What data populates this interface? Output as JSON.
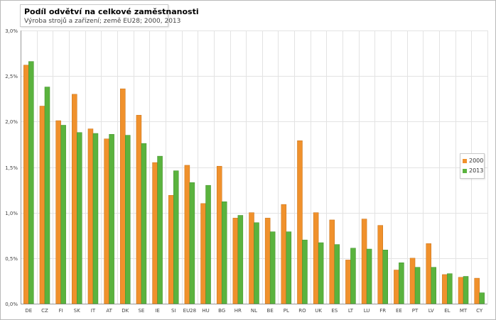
{
  "chart_data": {
    "type": "bar",
    "title": "Podíl odvětví na celkové zaměstnanosti",
    "subtitle": "Výroba strojů a zařízení; země EU28; 2000, 2013",
    "xlabel": "",
    "ylabel": "",
    "ylim": [
      0,
      3.0
    ],
    "yticks": [
      "0,0%",
      "0,5%",
      "1,0%",
      "1,5%",
      "2,0%",
      "2,5%",
      "3,0%"
    ],
    "grid": true,
    "legend_position": "right",
    "categories": [
      "DE",
      "CZ",
      "FI",
      "SK",
      "IT",
      "AT",
      "DK",
      "SE",
      "IE",
      "SI",
      "EU28",
      "HU",
      "BG",
      "HR",
      "NL",
      "BE",
      "PL",
      "RO",
      "UK",
      "ES",
      "LT",
      "LU",
      "FR",
      "EE",
      "PT",
      "LV",
      "EL",
      "MT",
      "CY"
    ],
    "series": [
      {
        "name": "2000",
        "color": "#f0912c",
        "values": [
          2.62,
          2.17,
          2.01,
          2.3,
          1.92,
          1.81,
          2.36,
          2.07,
          1.55,
          1.19,
          1.52,
          1.1,
          1.51,
          0.94,
          1.0,
          0.94,
          1.09,
          1.79,
          1.0,
          0.92,
          0.48,
          0.93,
          0.86,
          0.37,
          0.5,
          0.66,
          0.32,
          0.29,
          0.28
        ]
      },
      {
        "name": "2013",
        "color": "#5ab33e",
        "values": [
          2.66,
          2.38,
          1.96,
          1.88,
          1.87,
          1.86,
          1.85,
          1.76,
          1.62,
          1.46,
          1.33,
          1.3,
          1.12,
          0.97,
          0.89,
          0.79,
          0.79,
          0.7,
          0.67,
          0.65,
          0.61,
          0.6,
          0.59,
          0.45,
          0.4,
          0.4,
          0.33,
          0.3,
          0.12
        ]
      }
    ]
  }
}
